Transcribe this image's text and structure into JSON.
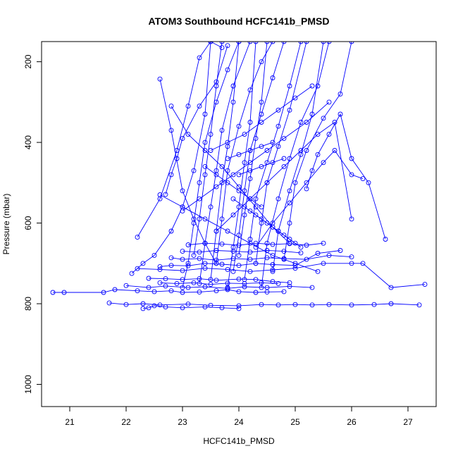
{
  "chart_data": {
    "type": "line",
    "title": "ATOM3 Southbound HCFC141b_PMSD",
    "xlabel": "HCFC141b_PMSD",
    "ylabel": "Pressure (mbar)",
    "xlim": [
      20.5,
      27.5
    ],
    "ylim": [
      1055,
      150
    ],
    "y_reversed": true,
    "x_ticks": [
      21,
      22,
      23,
      24,
      25,
      26,
      27
    ],
    "y_ticks": [
      200,
      400,
      600,
      800,
      1000
    ],
    "grid": false,
    "legend": "none",
    "marker": "open-circle",
    "series_color": "#0000ff",
    "series": [
      {
        "x": [
          20.7,
          20.9,
          21.6,
          21.8,
          22.2,
          22.5,
          22.8,
          23.0,
          23.3,
          23.6,
          23.8,
          24.0,
          24.3,
          24.5,
          24.8
        ],
        "y": [
          772,
          772,
          772,
          765,
          768,
          770,
          768,
          772,
          771,
          768,
          765,
          770,
          772,
          771,
          770
        ]
      },
      {
        "x": [
          21.7,
          22.0,
          22.3,
          22.6,
          23.1,
          23.5,
          24.0,
          24.4,
          24.7,
          25.0,
          25.3,
          25.6,
          26.0,
          26.4,
          26.7,
          27.2
        ],
        "y": [
          798,
          802,
          800,
          803,
          801,
          804,
          805,
          802,
          803,
          802,
          803,
          802,
          803,
          802,
          800,
          803
        ]
      },
      {
        "x": [
          22.3,
          22.4,
          22.5,
          22.7,
          23.0,
          23.4,
          23.7,
          24.0
        ],
        "y": [
          812,
          810,
          805,
          808,
          810,
          808,
          810,
          812
        ]
      },
      {
        "x": [
          22.2,
          22.6,
          23.0,
          23.4,
          23.8,
          24.2,
          24.6,
          25.0,
          25.5,
          26.0,
          26.2,
          26.7,
          27.3
        ],
        "y": [
          713,
          715,
          718,
          712,
          715,
          720,
          716,
          712,
          700,
          700,
          700,
          760,
          752
        ]
      },
      {
        "x": [
          22.4,
          22.7,
          23.0,
          23.3,
          23.6,
          24.0,
          24.3,
          24.6,
          24.9
        ],
        "y": [
          737,
          738,
          740,
          738,
          742,
          739,
          740,
          745,
          748
        ]
      },
      {
        "x": [
          22.6,
          22.9,
          23.2,
          23.5,
          23.8,
          24.1,
          24.4,
          24.7
        ],
        "y": [
          748,
          750,
          748,
          752,
          749,
          750,
          748,
          750
        ]
      },
      {
        "x": [
          22.0,
          22.4,
          22.7,
          23.1,
          23.4,
          23.8,
          24.1,
          24.5,
          24.9,
          25.3
        ],
        "y": [
          755,
          760,
          756,
          760,
          758,
          762,
          758,
          760,
          757,
          760
        ]
      },
      {
        "x": [
          22.6,
          22.8,
          23.1,
          23.4,
          23.7,
          24.0,
          24.3,
          24.6,
          25.0,
          25.4,
          25.8
        ],
        "y": [
          708,
          705,
          706,
          700,
          702,
          705,
          700,
          703,
          705,
          675,
          668
        ]
      },
      {
        "x": [
          22.8,
          23.0,
          23.3,
          23.6,
          23.9,
          24.2,
          24.5,
          24.8,
          25.2,
          25.6,
          26.0
        ],
        "y": [
          686,
          690,
          688,
          692,
          688,
          690,
          686,
          688,
          690,
          680,
          684
        ]
      },
      {
        "x": [
          23.0,
          23.3,
          23.6,
          23.9,
          24.2,
          24.5,
          24.8,
          25.1
        ],
        "y": [
          670,
          672,
          668,
          670,
          672,
          668,
          670,
          674
        ]
      },
      {
        "x": [
          23.1,
          23.4,
          23.7,
          24.0,
          24.3,
          24.6,
          24.9,
          25.2,
          25.5
        ],
        "y": [
          654,
          650,
          652,
          655,
          650,
          653,
          651,
          655,
          650
        ]
      },
      {
        "x": [
          22.1,
          22.3,
          22.5,
          22.8,
          23.0,
          23.2,
          23.4,
          23.5
        ],
        "y": [
          725,
          700,
          680,
          620,
          560,
          470,
          330,
          150
        ]
      },
      {
        "x": [
          22.2,
          22.6,
          22.9,
          23.1,
          23.3,
          23.5,
          23.7
        ],
        "y": [
          635,
          540,
          420,
          310,
          190,
          150,
          165
        ]
      },
      {
        "x": [
          22.6,
          22.8,
          23.0,
          23.2,
          23.4,
          23.6
        ],
        "y": [
          243,
          370,
          520,
          590,
          650,
          700
        ]
      },
      {
        "x": [
          22.7,
          22.8,
          22.9,
          23.0,
          23.3,
          23.6,
          23.8
        ],
        "y": [
          529,
          480,
          440,
          390,
          310,
          250,
          160
        ]
      },
      {
        "x": [
          23.0,
          23.1,
          23.2,
          23.3,
          23.4,
          23.6,
          23.8,
          24.0
        ],
        "y": [
          760,
          700,
          600,
          500,
          400,
          300,
          220,
          150
        ]
      },
      {
        "x": [
          23.2,
          23.3,
          23.4,
          23.5,
          23.6,
          23.7
        ],
        "y": [
          680,
          590,
          480,
          380,
          260,
          150
        ]
      },
      {
        "x": [
          23.3,
          23.4,
          23.5,
          23.6,
          23.7,
          23.9,
          24.2
        ],
        "y": [
          750,
          650,
          560,
          470,
          370,
          260,
          150
        ]
      },
      {
        "x": [
          23.5,
          23.6,
          23.7,
          23.8,
          23.9,
          24.0
        ],
        "y": [
          740,
          620,
          500,
          410,
          300,
          150
        ]
      },
      {
        "x": [
          23.6,
          23.7,
          23.8,
          24.0,
          24.2,
          24.4,
          24.6
        ],
        "y": [
          700,
          590,
          470,
          360,
          270,
          200,
          150
        ]
      },
      {
        "x": [
          23.8,
          23.9,
          24.0,
          24.1,
          24.2,
          24.3
        ],
        "y": [
          760,
          660,
          560,
          450,
          350,
          150
        ]
      },
      {
        "x": [
          23.9,
          24.0,
          24.1,
          24.2,
          24.4,
          24.6,
          24.8
        ],
        "y": [
          720,
          630,
          520,
          420,
          330,
          240,
          150
        ]
      },
      {
        "x": [
          24.0,
          24.1,
          24.2,
          24.3,
          24.4,
          24.5
        ],
        "y": [
          680,
          580,
          490,
          390,
          300,
          150
        ]
      },
      {
        "x": [
          24.1,
          24.2,
          24.3,
          24.5,
          24.7,
          24.9,
          25.1
        ],
        "y": [
          740,
          640,
          540,
          450,
          360,
          260,
          150
        ]
      },
      {
        "x": [
          24.3,
          24.4,
          24.5,
          24.7,
          24.9,
          25.2
        ],
        "y": [
          700,
          600,
          500,
          410,
          320,
          150
        ]
      },
      {
        "x": [
          24.4,
          24.5,
          24.7,
          24.9,
          25.1,
          25.4,
          25.6
        ],
        "y": [
          760,
          650,
          540,
          440,
          350,
          260,
          150
        ]
      },
      {
        "x": [
          24.6,
          24.7,
          24.9,
          25.1,
          25.3,
          25.5
        ],
        "y": [
          720,
          620,
          520,
          430,
          330,
          150
        ]
      },
      {
        "x": [
          24.8,
          24.9,
          25.0,
          25.2,
          25.5,
          25.8,
          26.0
        ],
        "y": [
          690,
          600,
          500,
          420,
          340,
          280,
          150
        ]
      },
      {
        "x": [
          25.2,
          25.3,
          25.4,
          25.6,
          25.8,
          26.0,
          26.3,
          26.6
        ],
        "y": [
          515,
          470,
          430,
          380,
          330,
          440,
          500,
          640
        ]
      },
      {
        "x": [
          24.3,
          24.6,
          24.9,
          25.2,
          25.5,
          25.7,
          26.0,
          26.2
        ],
        "y": [
          660,
          600,
          550,
          500,
          450,
          420,
          480,
          490
        ]
      },
      {
        "x": [
          23.6,
          23.9,
          24.2,
          24.5,
          24.8,
          25.1,
          25.4,
          25.7,
          26.0
        ],
        "y": [
          620,
          580,
          540,
          500,
          460,
          420,
          380,
          350,
          590
        ]
      },
      {
        "x": [
          22.8,
          23.1,
          23.4,
          23.7,
          24.0,
          24.3,
          24.6,
          24.9
        ],
        "y": [
          310,
          380,
          420,
          460,
          510,
          560,
          610,
          650
        ]
      },
      {
        "x": [
          22.6,
          23.0,
          23.4,
          23.8,
          24.2,
          24.6,
          25.0,
          25.4
        ],
        "y": [
          530,
          560,
          590,
          620,
          650,
          680,
          700,
          720
        ]
      },
      {
        "x": [
          23.0,
          23.3,
          23.6,
          23.9,
          24.2,
          24.5,
          24.8,
          25.2,
          25.6
        ],
        "y": [
          570,
          540,
          510,
          480,
          450,
          420,
          390,
          350,
          300
        ]
      },
      {
        "x": [
          23.5,
          23.8,
          24.1,
          24.4,
          24.7,
          25.0,
          25.3
        ],
        "y": [
          420,
          400,
          380,
          350,
          320,
          290,
          260
        ]
      },
      {
        "x": [
          23.8,
          24.0,
          24.2,
          24.4,
          24.6
        ],
        "y": [
          440,
          430,
          420,
          410,
          400
        ]
      },
      {
        "x": [
          23.4,
          23.6,
          23.8,
          24.0,
          24.2,
          24.4
        ],
        "y": [
          460,
          480,
          500,
          520,
          540,
          560
        ]
      },
      {
        "x": [
          23.9,
          24.1,
          24.3,
          24.5,
          24.7,
          24.9,
          25.1
        ],
        "y": [
          540,
          560,
          580,
          600,
          620,
          640,
          660
        ]
      },
      {
        "x": [
          24.0,
          24.2,
          24.4,
          24.6,
          24.8
        ],
        "y": [
          480,
          470,
          460,
          450,
          440
        ]
      },
      {
        "x": [
          24.2,
          24.4,
          24.6,
          24.8,
          25.0
        ],
        "y": [
          570,
          590,
          610,
          630,
          650
        ]
      }
    ]
  }
}
